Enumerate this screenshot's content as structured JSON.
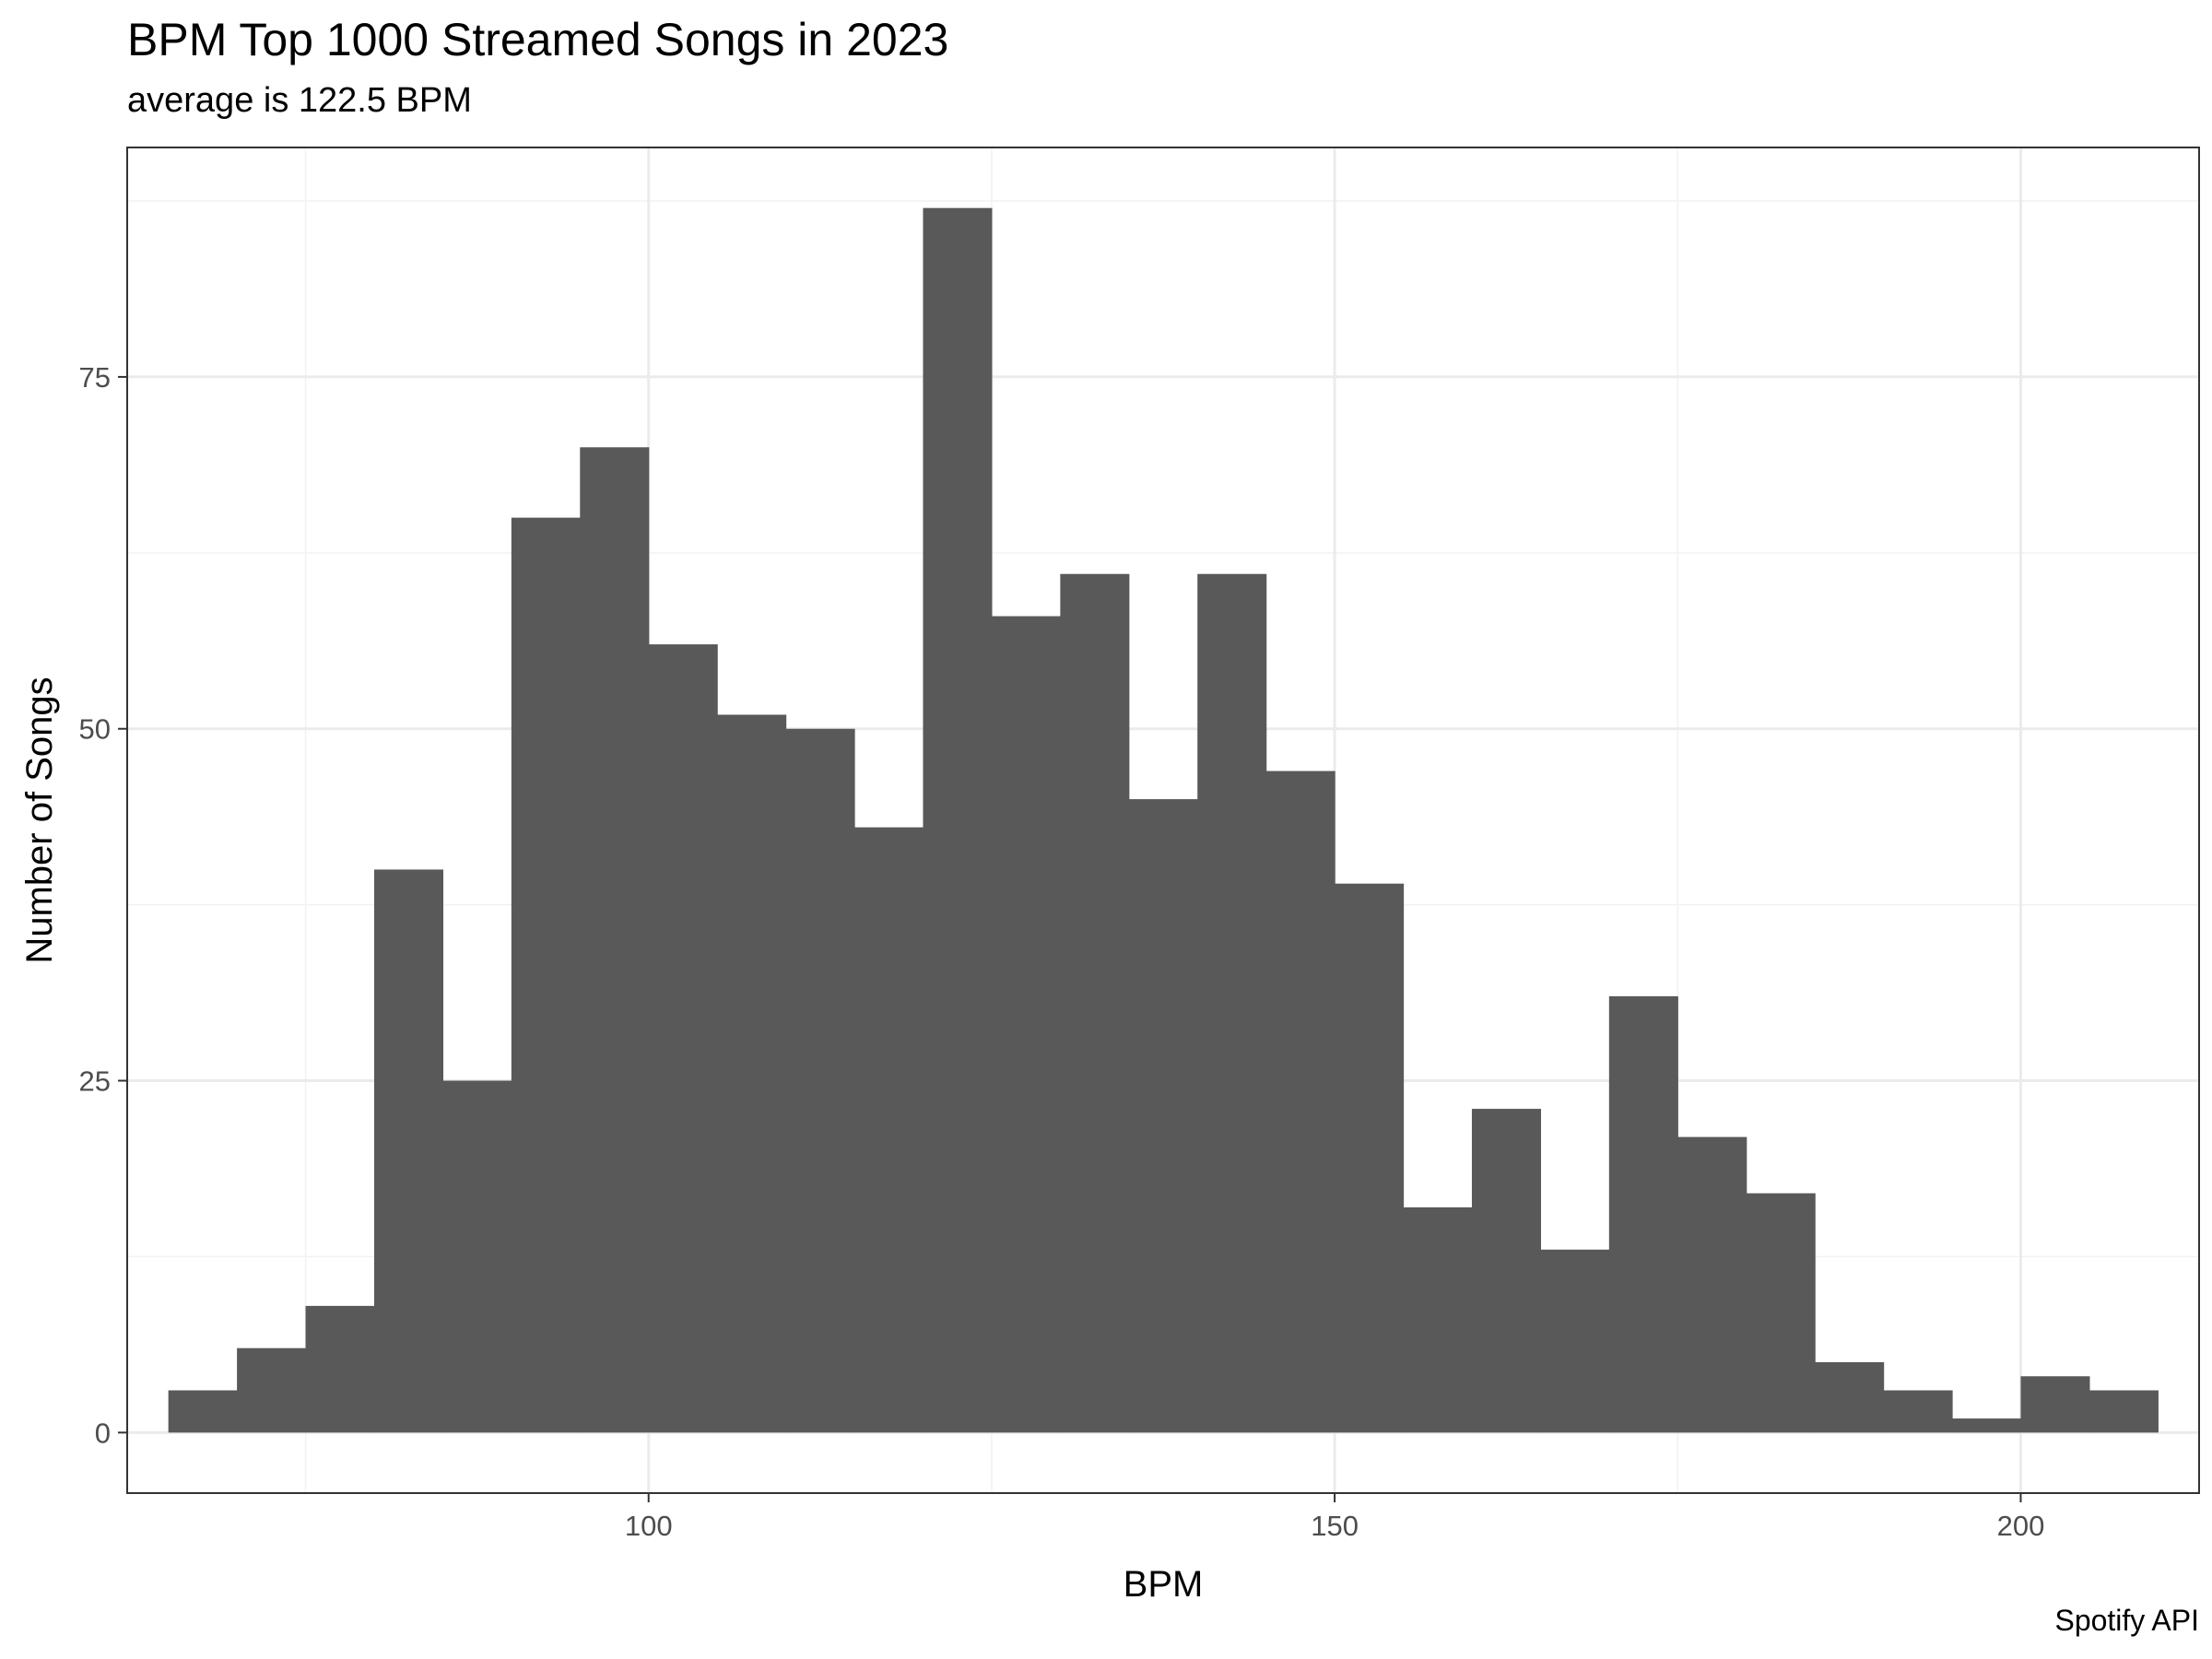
{
  "chart_data": {
    "type": "bar",
    "title": "BPM Top 1000 Streamed Songs in 2023",
    "subtitle": "average is 122.5 BPM",
    "xlabel": "BPM",
    "ylabel": "Number of Songs",
    "caption": "Spotify API",
    "bin_width": 5,
    "bin_starts": [
      65,
      70,
      75,
      80,
      85,
      90,
      95,
      100,
      105,
      110,
      115,
      120,
      125,
      130,
      135,
      140,
      145,
      150,
      155,
      160,
      165,
      170,
      175,
      180,
      185,
      190,
      195,
      200,
      205
    ],
    "values": [
      3,
      6,
      9,
      40,
      25,
      65,
      70,
      56,
      51,
      50,
      43,
      87,
      58,
      61,
      45,
      61,
      47,
      39,
      16,
      23,
      13,
      31,
      21,
      17,
      5,
      3,
      1,
      4,
      3
    ],
    "xlim": [
      62,
      213
    ],
    "ylim": [
      -4.3,
      91.3
    ],
    "x_ticks": [
      100,
      150,
      200
    ],
    "x_tick_labels": [
      "100",
      "150",
      "200"
    ],
    "y_ticks": [
      0,
      25,
      50,
      75
    ],
    "y_tick_labels": [
      "0",
      "25",
      "50",
      "75"
    ],
    "bar_color": "#595959",
    "grid": true,
    "theme": "bw"
  }
}
